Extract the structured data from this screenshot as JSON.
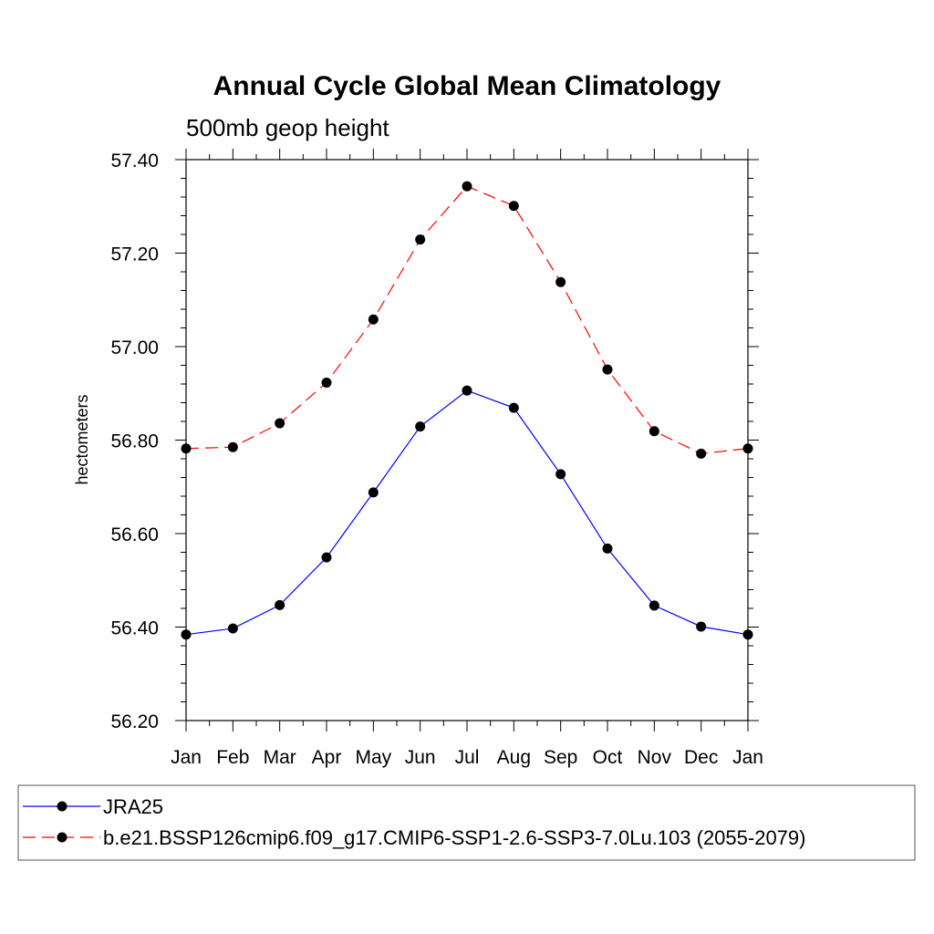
{
  "chart_data": {
    "type": "line",
    "title": "Annual Cycle Global Mean Climatology",
    "subtitle": "500mb geop height",
    "ylabel": "hectometers",
    "xlabel": "",
    "categories": [
      "Jan",
      "Feb",
      "Mar",
      "Apr",
      "May",
      "Jun",
      "Jul",
      "Aug",
      "Sep",
      "Oct",
      "Nov",
      "Dec",
      "Jan"
    ],
    "ylim": [
      56.2,
      57.4
    ],
    "yticks": [
      "56.20",
      "56.40",
      "56.60",
      "56.80",
      "57.00",
      "57.20",
      "57.40"
    ],
    "grid": false,
    "legend": "bottom",
    "series": [
      {
        "name": "JRA25",
        "color": "#0000ff",
        "dash": "solid",
        "marker": "filled-circle",
        "values": [
          56.384,
          56.397,
          56.447,
          56.549,
          56.688,
          56.829,
          56.906,
          56.869,
          56.727,
          56.568,
          56.446,
          56.401,
          56.384
        ]
      },
      {
        "name": "b.e21.BSSP126cmip6.f09_g17.CMIP6-SSP1-2.6-SSP3-7.0Lu.103 (2055-2079)",
        "color": "#ff0000",
        "dash": "dashed",
        "marker": "filled-circle",
        "values": [
          56.782,
          56.785,
          56.836,
          56.923,
          57.058,
          57.229,
          57.343,
          57.301,
          57.138,
          56.951,
          56.819,
          56.771,
          56.782
        ]
      }
    ]
  }
}
